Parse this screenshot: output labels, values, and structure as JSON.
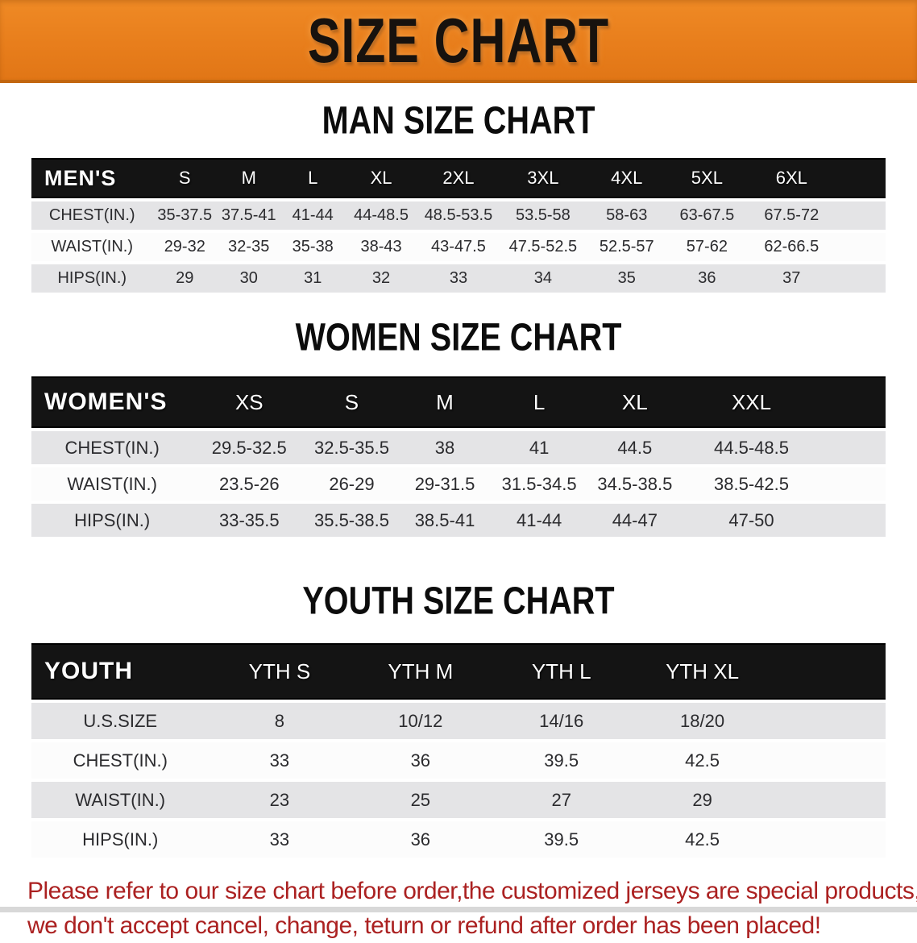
{
  "banner": {
    "title": "SIZE CHART"
  },
  "colors": {
    "accent_orange": "#E87E1C",
    "band_black": "#141414",
    "stripe_gray": "#E4E4E6",
    "warning_red": "#AB2121"
  },
  "sections": [
    {
      "id": "men",
      "title": "MAN SIZE CHART",
      "table": {
        "header": [
          "MEN'S",
          "S",
          "M",
          "L",
          "XL",
          "2XL",
          "3XL",
          "4XL",
          "5XL",
          "6XL"
        ],
        "rows": [
          {
            "label": "CHEST(IN.)",
            "values": [
              "35-37.5",
              "37.5-41",
              "41-44",
              "44-48.5",
              "48.5-53.5",
              "53.5-58",
              "58-63",
              "63-67.5",
              "67.5-72"
            ]
          },
          {
            "label": "WAIST(IN.)",
            "values": [
              "29-32",
              "32-35",
              "35-38",
              "38-43",
              "43-47.5",
              "47.5-52.5",
              "52.5-57",
              "57-62",
              "62-66.5"
            ]
          },
          {
            "label": "HIPS(IN.)",
            "values": [
              "29",
              "30",
              "31",
              "32",
              "33",
              "34",
              "35",
              "36",
              "37"
            ]
          }
        ]
      }
    },
    {
      "id": "women",
      "title": "WOMEN SIZE CHART",
      "table": {
        "header": [
          "WOMEN'S",
          "XS",
          "S",
          "M",
          "L",
          "XL",
          "XXL"
        ],
        "rows": [
          {
            "label": "CHEST(IN.)",
            "values": [
              "29.5-32.5",
              "32.5-35.5",
              "38",
              "41",
              "44.5",
              "44.5-48.5"
            ]
          },
          {
            "label": "WAIST(IN.)",
            "values": [
              "23.5-26",
              "26-29",
              "29-31.5",
              "31.5-34.5",
              "34.5-38.5",
              "38.5-42.5"
            ]
          },
          {
            "label": "HIPS(IN.)",
            "values": [
              "33-35.5",
              "35.5-38.5",
              "38.5-41",
              "41-44",
              "44-47",
              "47-50"
            ]
          }
        ]
      }
    },
    {
      "id": "youth",
      "title": "YOUTH SIZE CHART",
      "table": {
        "header": [
          "YOUTH",
          "YTH S",
          "YTH M",
          "YTH L",
          "YTH XL"
        ],
        "rows": [
          {
            "label": "U.S.SIZE",
            "values": [
              "8",
              "10/12",
              "14/16",
              "18/20"
            ]
          },
          {
            "label": "CHEST(IN.)",
            "values": [
              "33",
              "36",
              "39.5",
              "42.5"
            ]
          },
          {
            "label": "WAIST(IN.)",
            "values": [
              "23",
              "25",
              "27",
              "29"
            ]
          },
          {
            "label": "HIPS(IN.)",
            "values": [
              "33",
              "36",
              "39.5",
              "42.5"
            ]
          }
        ]
      }
    }
  ],
  "footer": {
    "line1": "Please refer to our size chart before order,the customized jerseys are special products,",
    "line2": "we don't accept cancel, change, teturn or refund after order has been placed!"
  }
}
